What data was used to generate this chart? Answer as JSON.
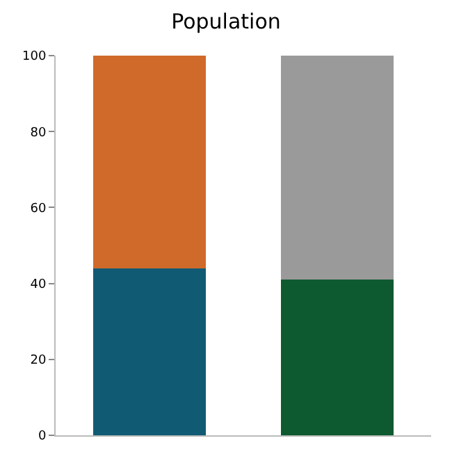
{
  "chart_data": {
    "type": "bar",
    "title": "Population",
    "stacked": true,
    "categories": [
      null,
      null
    ],
    "series": [
      {
        "colors": [
          "#115a74",
          "#0e5a30"
        ],
        "values": [
          44,
          41
        ]
      },
      {
        "colors": [
          "#d06a2a",
          "#9a9a9a"
        ],
        "values": [
          56,
          59
        ]
      }
    ],
    "ylim": [
      0,
      100
    ],
    "yticks": [
      0,
      20,
      40,
      60,
      80,
      100
    ],
    "grid": false
  }
}
